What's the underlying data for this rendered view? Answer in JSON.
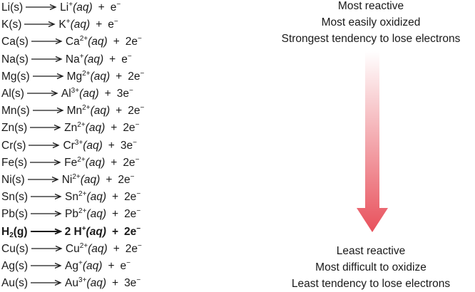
{
  "top_notes": [
    "Most reactive",
    "Most easily oxidized",
    "Strongest tendency to lose electrons"
  ],
  "bottom_notes": [
    "Least reactive",
    "Most difficult to oxidize",
    "Least tendency to lose electrons"
  ],
  "reactions": [
    {
      "metal": "Li",
      "metal_sub": "",
      "metal_state": "(s)",
      "coef": "",
      "ion": "Li",
      "charge": "+",
      "ion_state": "(aq)",
      "electrons": "e",
      "bold": false
    },
    {
      "metal": "K",
      "metal_sub": "",
      "metal_state": "(s)",
      "coef": "",
      "ion": "K",
      "charge": "+",
      "ion_state": "(aq)",
      "electrons": "e",
      "bold": false
    },
    {
      "metal": "Ca",
      "metal_sub": "",
      "metal_state": "(s)",
      "coef": "",
      "ion": "Ca",
      "charge": "2+",
      "ion_state": "(aq)",
      "electrons": "2e",
      "bold": false
    },
    {
      "metal": "Na",
      "metal_sub": "",
      "metal_state": "(s)",
      "coef": "",
      "ion": "Na",
      "charge": "+",
      "ion_state": "(aq)",
      "electrons": "e",
      "bold": false
    },
    {
      "metal": "Mg",
      "metal_sub": "",
      "metal_state": "(s)",
      "coef": "",
      "ion": "Mg",
      "charge": "2+",
      "ion_state": "(aq)",
      "electrons": "2e",
      "bold": false
    },
    {
      "metal": "Al",
      "metal_sub": "",
      "metal_state": "(s)",
      "coef": "",
      "ion": "Al",
      "charge": "3+",
      "ion_state": "(aq)",
      "electrons": "3e",
      "bold": false
    },
    {
      "metal": "Mn",
      "metal_sub": "",
      "metal_state": "(s)",
      "coef": "",
      "ion": "Mn",
      "charge": "2+",
      "ion_state": "(aq)",
      "electrons": "2e",
      "bold": false
    },
    {
      "metal": "Zn",
      "metal_sub": "",
      "metal_state": "(s)",
      "coef": "",
      "ion": "Zn",
      "charge": "2+",
      "ion_state": "(aq)",
      "electrons": "2e",
      "bold": false
    },
    {
      "metal": "Cr",
      "metal_sub": "",
      "metal_state": "(s)",
      "coef": "",
      "ion": "Cr",
      "charge": "3+",
      "ion_state": "(aq)",
      "electrons": "3e",
      "bold": false
    },
    {
      "metal": "Fe",
      "metal_sub": "",
      "metal_state": "(s)",
      "coef": "",
      "ion": "Fe",
      "charge": "2+",
      "ion_state": "(aq)",
      "electrons": "2e",
      "bold": false
    },
    {
      "metal": "Ni",
      "metal_sub": "",
      "metal_state": "(s)",
      "coef": "",
      "ion": "Ni",
      "charge": "2+",
      "ion_state": "(aq)",
      "electrons": "2e",
      "bold": false
    },
    {
      "metal": "Sn",
      "metal_sub": "",
      "metal_state": "(s)",
      "coef": "",
      "ion": "Sn",
      "charge": "2+",
      "ion_state": "(aq)",
      "electrons": "2e",
      "bold": false
    },
    {
      "metal": "Pb",
      "metal_sub": "",
      "metal_state": "(s)",
      "coef": "",
      "ion": "Pb",
      "charge": "2+",
      "ion_state": "(aq)",
      "electrons": "2e",
      "bold": false
    },
    {
      "metal": "H",
      "metal_sub": "2",
      "metal_state": "(g)",
      "coef": "2 ",
      "ion": "H",
      "charge": "+",
      "ion_state": "(aq)",
      "electrons": "2e",
      "bold": true
    },
    {
      "metal": "Cu",
      "metal_sub": "",
      "metal_state": "(s)",
      "coef": "",
      "ion": "Cu",
      "charge": "2+",
      "ion_state": "(aq)",
      "electrons": "2e",
      "bold": false
    },
    {
      "metal": "Ag",
      "metal_sub": "",
      "metal_state": "(s)",
      "coef": "",
      "ion": "Ag",
      "charge": "+",
      "ion_state": "(aq)",
      "electrons": "e",
      "bold": false
    },
    {
      "metal": "Au",
      "metal_sub": "",
      "metal_state": "(s)",
      "coef": "",
      "ion": "Au",
      "charge": "3+",
      "ion_state": "(aq)",
      "electrons": "3e",
      "bold": false
    }
  ],
  "symbols": {
    "plus": "+",
    "electron_charge": "−"
  },
  "colors": {
    "arrow_top": "#ffffff",
    "arrow_bottom": "#e8515c"
  }
}
